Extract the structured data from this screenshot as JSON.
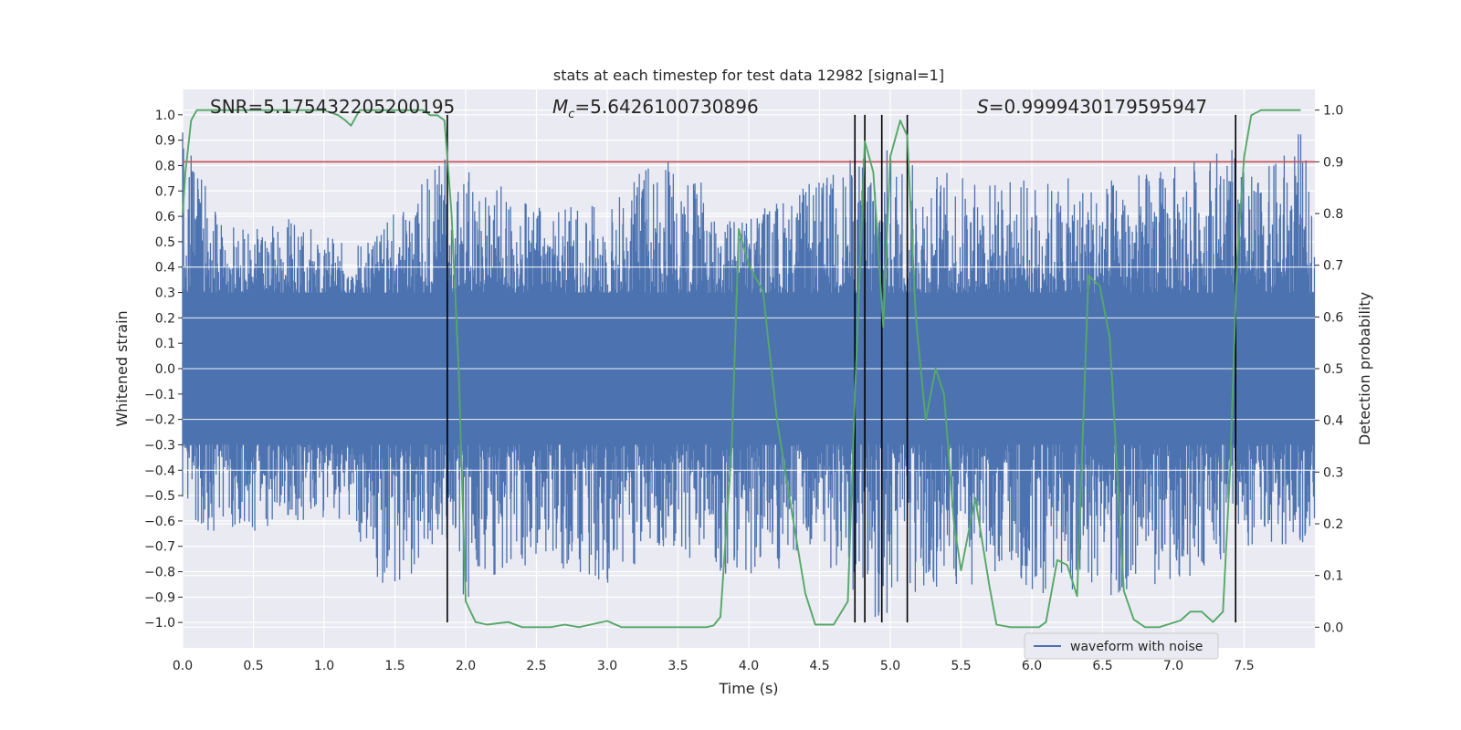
{
  "chart_data": {
    "type": "line",
    "title": "stats at each timestep for test data 12982 [signal=1]",
    "xlabel": "Time (s)",
    "ylabel": "Whitened strain",
    "ylabel_right": "Detection probability",
    "xlim": [
      0.0,
      8.0
    ],
    "ylim": [
      -1.1,
      1.1
    ],
    "ylim_right": [
      -0.04,
      1.04
    ],
    "xticks": [
      "0.0",
      "0.5",
      "1.0",
      "1.5",
      "2.0",
      "2.5",
      "3.0",
      "3.5",
      "4.0",
      "4.5",
      "5.0",
      "5.5",
      "6.0",
      "6.5",
      "7.0",
      "7.5"
    ],
    "xtick_values": [
      0.0,
      0.5,
      1.0,
      1.5,
      2.0,
      2.5,
      3.0,
      3.5,
      4.0,
      4.5,
      5.0,
      5.5,
      6.0,
      6.5,
      7.0,
      7.5
    ],
    "yticks": [
      "1.0",
      "0.9",
      "0.8",
      "0.7",
      "0.6",
      "0.5",
      "0.4",
      "0.3",
      "0.2",
      "0.1",
      "0.0",
      "−0.1",
      "−0.2",
      "−0.3",
      "−0.4",
      "−0.5",
      "−0.6",
      "−0.7",
      "−0.8",
      "−0.9",
      "−1.0"
    ],
    "ytick_values": [
      1.0,
      0.9,
      0.8,
      0.7,
      0.6,
      0.5,
      0.4,
      0.3,
      0.2,
      0.1,
      0.0,
      -0.1,
      -0.2,
      -0.3,
      -0.4,
      -0.5,
      -0.6,
      -0.7,
      -0.8,
      -0.9,
      -1.0
    ],
    "yticks_right": [
      "1.0",
      "0.9",
      "0.8",
      "0.7",
      "0.6",
      "0.5",
      "0.4",
      "0.3",
      "0.2",
      "0.1",
      "0.0"
    ],
    "ytick_right_values": [
      1.0,
      0.9,
      0.8,
      0.7,
      0.6,
      0.5,
      0.4,
      0.3,
      0.2,
      0.1,
      0.0
    ],
    "annotations": {
      "snr": "SNR=5.175432205200195",
      "mc_symbol": "M",
      "mc_sub": "c",
      "mc_value": "=5.6426100730896",
      "s_symbol": "S",
      "s_value": "=0.9999430179595947"
    },
    "legend": {
      "label": "waveform with noise",
      "location": "lower-right"
    },
    "threshold": {
      "value": 0.9,
      "axis": "right",
      "color": "#c44e52"
    },
    "vlines": [
      1.87,
      4.75,
      4.82,
      4.94,
      5.12,
      7.44
    ],
    "vline_range": [
      -1.0,
      1.0
    ],
    "waveform": {
      "name": "waveform with noise",
      "color": "#4c72b0",
      "envelope": [
        {
          "t": 0.0,
          "upper": 0.95,
          "lower": -0.55
        },
        {
          "t": 0.3,
          "upper": 0.55,
          "lower": -0.7
        },
        {
          "t": 0.7,
          "upper": 0.6,
          "lower": -0.6
        },
        {
          "t": 1.2,
          "upper": 0.5,
          "lower": -0.6
        },
        {
          "t": 1.4,
          "upper": 0.55,
          "lower": -0.9
        },
        {
          "t": 1.87,
          "upper": 0.85,
          "lower": -0.7
        },
        {
          "t": 1.95,
          "upper": 0.8,
          "lower": -0.93
        },
        {
          "t": 2.5,
          "upper": 0.65,
          "lower": -0.75
        },
        {
          "t": 3.0,
          "upper": 0.65,
          "lower": -0.85
        },
        {
          "t": 3.4,
          "upper": 0.9,
          "lower": -0.7
        },
        {
          "t": 3.9,
          "upper": 0.6,
          "lower": -0.85
        },
        {
          "t": 4.5,
          "upper": 0.75,
          "lower": -0.75
        },
        {
          "t": 4.9,
          "upper": 0.9,
          "lower": -1.0
        },
        {
          "t": 5.2,
          "upper": 0.8,
          "lower": -0.95
        },
        {
          "t": 5.8,
          "upper": 0.75,
          "lower": -0.8
        },
        {
          "t": 6.0,
          "upper": 0.75,
          "lower": -0.9
        },
        {
          "t": 6.5,
          "upper": 0.75,
          "lower": -0.9
        },
        {
          "t": 7.0,
          "upper": 0.8,
          "lower": -0.85
        },
        {
          "t": 7.35,
          "upper": 0.9,
          "lower": -0.75
        },
        {
          "t": 7.6,
          "upper": 0.75,
          "lower": -0.7
        },
        {
          "t": 7.9,
          "upper": 0.95,
          "lower": -0.7
        },
        {
          "t": 8.0,
          "upper": 0.6,
          "lower": -0.6
        }
      ]
    },
    "probability": {
      "name": "Detection probability",
      "color": "#55a868",
      "x": [
        0.0,
        0.02,
        0.06,
        0.1,
        0.2,
        0.5,
        1.0,
        1.1,
        1.15,
        1.19,
        1.25,
        1.5,
        1.7,
        1.75,
        1.8,
        1.85,
        1.9,
        1.95,
        2.0,
        2.07,
        2.15,
        2.3,
        2.4,
        2.6,
        2.7,
        2.8,
        3.0,
        3.1,
        3.5,
        3.7,
        3.75,
        3.8,
        3.88,
        3.93,
        4.0,
        4.1,
        4.2,
        4.3,
        4.4,
        4.47,
        4.6,
        4.7,
        4.75,
        4.82,
        4.88,
        4.95,
        5.0,
        5.07,
        5.12,
        5.18,
        5.25,
        5.32,
        5.38,
        5.45,
        5.5,
        5.55,
        5.6,
        5.7,
        5.75,
        5.85,
        6.05,
        6.1,
        6.18,
        6.25,
        6.32,
        6.4,
        6.48,
        6.55,
        6.65,
        6.72,
        6.8,
        6.9,
        7.05,
        7.12,
        7.2,
        7.28,
        7.35,
        7.4,
        7.45,
        7.5,
        7.55,
        7.62,
        7.7,
        7.9
      ],
      "y": [
        0.8,
        0.88,
        0.98,
        1.0,
        1.0,
        1.0,
        1.0,
        0.99,
        0.98,
        0.97,
        1.0,
        1.0,
        1.0,
        0.99,
        0.99,
        0.98,
        0.8,
        0.5,
        0.05,
        0.01,
        0.005,
        0.01,
        0.0,
        0.0,
        0.005,
        0.0,
        0.012,
        0.0,
        0.0,
        0.0,
        0.003,
        0.02,
        0.35,
        0.77,
        0.7,
        0.65,
        0.4,
        0.23,
        0.065,
        0.005,
        0.005,
        0.05,
        0.45,
        0.94,
        0.88,
        0.58,
        0.91,
        0.98,
        0.95,
        0.6,
        0.4,
        0.5,
        0.45,
        0.2,
        0.11,
        0.18,
        0.25,
        0.08,
        0.005,
        0.0,
        0.0,
        0.01,
        0.13,
        0.12,
        0.06,
        0.68,
        0.66,
        0.56,
        0.07,
        0.015,
        0.0,
        0.0,
        0.013,
        0.03,
        0.03,
        0.01,
        0.03,
        0.3,
        0.71,
        0.91,
        0.99,
        1.0,
        1.0,
        1.0
      ]
    }
  }
}
